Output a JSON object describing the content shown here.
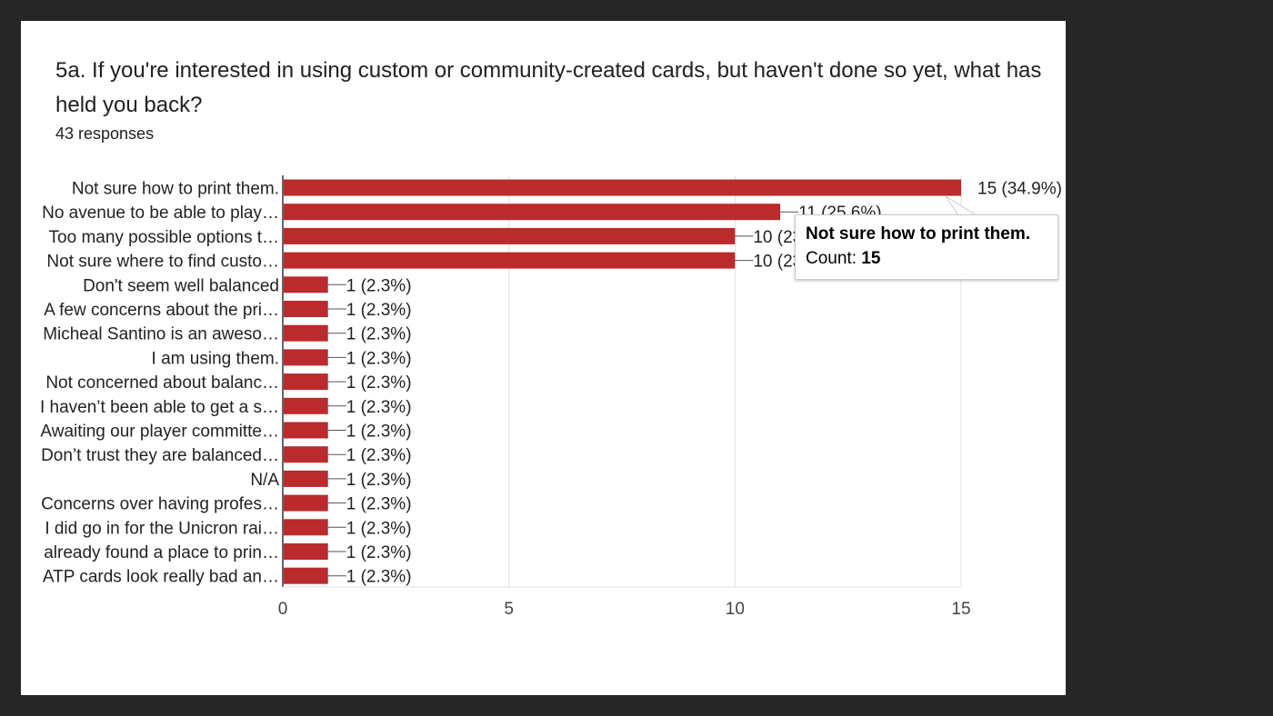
{
  "question": {
    "title": "5a. If you're interested in using custom or community-created cards, but haven't done so yet, what has held you back?",
    "responses": "43 responses"
  },
  "tooltip": {
    "title": "Not sure how to print them.",
    "count_label": "Count:",
    "count_value": "15"
  },
  "colors": {
    "bar": "#bb2a2c",
    "background": "#262626",
    "card": "#ffffff"
  },
  "chart_data": {
    "type": "bar",
    "orientation": "horizontal",
    "categories": [
      "Not sure how to print them.",
      "No avenue to be able to play…",
      "Too many possible options t…",
      "Not sure where to find custo…",
      "Don't seem well balanced",
      "A few concerns about the pri…",
      "Micheal Santino is an aweso…",
      "I am using them.",
      "Not concerned about balanc…",
      "I haven’t been able to get a s…",
      "Awaiting our player committe…",
      "Don’t trust they are balanced…",
      "N/A",
      "Concerns over having profes…",
      "I did go in for the Unicron rai…",
      "already found a place to prin…",
      "ATP cards look really bad an…"
    ],
    "values": [
      15,
      11,
      10,
      10,
      1,
      1,
      1,
      1,
      1,
      1,
      1,
      1,
      1,
      1,
      1,
      1,
      1
    ],
    "data_labels": [
      "15 (34.9%)",
      "11 (25.6%)",
      "10 (23.3%)",
      "10 (23.3%)",
      "1 (2.3%)",
      "1 (2.3%)",
      "1 (2.3%)",
      "1 (2.3%)",
      "1 (2.3%)",
      "1 (2.3%)",
      "1 (2.3%)",
      "1 (2.3%)",
      "1 (2.3%)",
      "1 (2.3%)",
      "1 (2.3%)",
      "1 (2.3%)",
      "1 (2.3%)"
    ],
    "xlim": [
      0,
      15
    ],
    "xticks": [
      "0",
      "5",
      "10",
      "15"
    ],
    "grid": true,
    "legend": "none"
  }
}
